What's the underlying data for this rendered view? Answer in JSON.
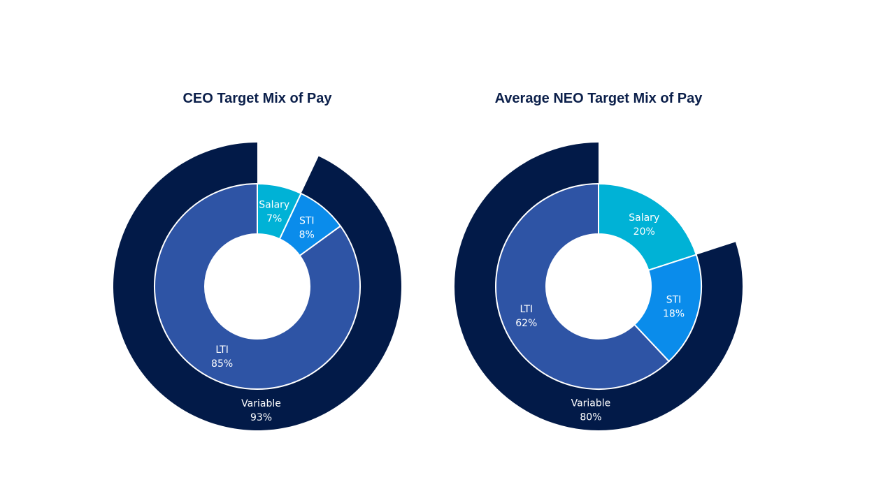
{
  "chart_data": [
    {
      "type": "pie",
      "title": "CEO Target Mix of Pay",
      "inner": [
        {
          "name": "Salary",
          "value": 7,
          "label": "7%"
        },
        {
          "name": "STI",
          "value": 8,
          "label": "8%"
        },
        {
          "name": "LTI",
          "value": 85,
          "label": "85%"
        }
      ],
      "outer": [
        {
          "name": "Variable",
          "value": 93,
          "label": "93%"
        }
      ]
    },
    {
      "type": "pie",
      "title": "Average NEO Target Mix of Pay",
      "inner": [
        {
          "name": "Salary",
          "value": 20,
          "label": "20%"
        },
        {
          "name": "STI",
          "value": 18,
          "label": "18%"
        },
        {
          "name": "LTI",
          "value": 62,
          "label": "62%"
        }
      ],
      "outer": [
        {
          "name": "Variable",
          "value": 80,
          "label": "80%"
        }
      ]
    }
  ],
  "colors": {
    "Salary": "#00B2D6",
    "STI": "#0A8CEB",
    "LTI": "#2E54A5",
    "Variable": "#021A48"
  }
}
